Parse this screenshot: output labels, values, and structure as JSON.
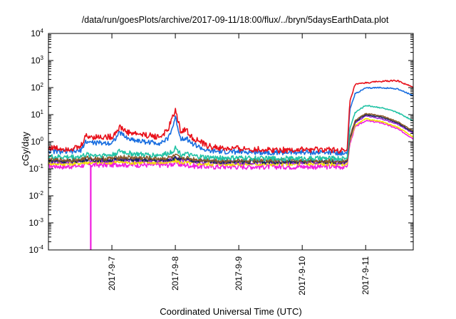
{
  "chart_data": {
    "type": "line",
    "title": "/data/run/goesPlots/archive/2017-09-11/18:00/flux/../bryn/5daysEarthData.plot",
    "xlabel": "Coordinated Universal Time (UTC)",
    "ylabel": "cGy/day",
    "y_scale": "log",
    "ylim": [
      0.0001,
      10000
    ],
    "xlim": [
      "2017-09-06 00:00",
      "2017-09-11 18:00"
    ],
    "y_ticks": [
      {
        "base": "10",
        "exp": "-4",
        "value": 0.0001
      },
      {
        "base": "10",
        "exp": "-3",
        "value": 0.001
      },
      {
        "base": "10",
        "exp": "-2",
        "value": 0.01
      },
      {
        "base": "10",
        "exp": "-1",
        "value": 0.1
      },
      {
        "base": "10",
        "exp": "0",
        "value": 1
      },
      {
        "base": "10",
        "exp": "1",
        "value": 10
      },
      {
        "base": "10",
        "exp": "2",
        "value": 100
      },
      {
        "base": "10",
        "exp": "3",
        "value": 1000
      },
      {
        "base": "10",
        "exp": "4",
        "value": 10000
      }
    ],
    "x_ticks": [
      {
        "label": "2017-9-7",
        "x": "2017-09-07 00:00"
      },
      {
        "label": "2017-9-8",
        "x": "2017-09-08 00:00"
      },
      {
        "label": "2017-9-9",
        "x": "2017-09-09 00:00"
      },
      {
        "label": "2017-9-10",
        "x": "2017-09-10 00:00"
      },
      {
        "label": "2017-9-11",
        "x": "2017-09-11 00:00"
      }
    ],
    "grid": false,
    "legend": "none",
    "x": [
      "2017-09-06 00:00",
      "2017-09-06 06:00",
      "2017-09-06 12:00",
      "2017-09-06 14:00",
      "2017-09-06 18:00",
      "2017-09-07 00:00",
      "2017-09-07 03:00",
      "2017-09-07 06:00",
      "2017-09-07 12:00",
      "2017-09-07 18:00",
      "2017-09-07 21:00",
      "2017-09-07 23:00",
      "2017-09-08 00:00",
      "2017-09-08 02:00",
      "2017-09-08 04:00",
      "2017-09-08 06:00",
      "2017-09-08 12:00",
      "2017-09-08 18:00",
      "2017-09-09 00:00",
      "2017-09-09 12:00",
      "2017-09-10 00:00",
      "2017-09-10 12:00",
      "2017-09-10 16:00",
      "2017-09-10 17:00",
      "2017-09-10 18:00",
      "2017-09-10 20:00",
      "2017-09-11 00:00",
      "2017-09-11 06:00",
      "2017-09-11 12:00",
      "2017-09-11 18:00"
    ],
    "series": [
      {
        "color": "#e8111b",
        "values": [
          0.6,
          0.55,
          0.6,
          1.6,
          1.5,
          1.5,
          3.5,
          2.2,
          1.8,
          1.5,
          2.5,
          8.0,
          15.0,
          2.5,
          2.8,
          1.5,
          0.7,
          0.55,
          0.55,
          0.5,
          0.5,
          0.5,
          0.45,
          0.45,
          30,
          130,
          150,
          170,
          180,
          100
        ]
      },
      {
        "color": "#1a6fe0",
        "values": [
          0.45,
          0.42,
          0.45,
          1.0,
          0.9,
          0.9,
          2.2,
          1.3,
          1.0,
          0.9,
          1.2,
          3.5,
          8.0,
          1.3,
          1.4,
          0.9,
          0.45,
          0.42,
          0.42,
          0.4,
          0.4,
          0.4,
          0.38,
          0.38,
          15,
          60,
          95,
          100,
          90,
          50
        ]
      },
      {
        "color": "#22c3a5",
        "values": [
          0.28,
          0.27,
          0.28,
          0.33,
          0.32,
          0.32,
          0.45,
          0.38,
          0.33,
          0.32,
          0.36,
          0.45,
          0.6,
          0.35,
          0.36,
          0.3,
          0.26,
          0.25,
          0.25,
          0.24,
          0.24,
          0.24,
          0.24,
          0.24,
          3,
          12,
          22,
          18,
          12,
          6
        ]
      },
      {
        "color": "#8a5a2b",
        "values": [
          0.22,
          0.21,
          0.22,
          0.25,
          0.24,
          0.24,
          0.27,
          0.26,
          0.25,
          0.24,
          0.25,
          0.27,
          0.3,
          0.25,
          0.25,
          0.23,
          0.21,
          0.2,
          0.2,
          0.2,
          0.2,
          0.2,
          0.2,
          0.2,
          1.5,
          6,
          11,
          9,
          5.5,
          2.5
        ]
      },
      {
        "color": "#1b2a5c",
        "values": [
          0.2,
          0.19,
          0.2,
          0.22,
          0.21,
          0.21,
          0.23,
          0.22,
          0.21,
          0.21,
          0.22,
          0.23,
          0.25,
          0.22,
          0.22,
          0.2,
          0.19,
          0.18,
          0.18,
          0.18,
          0.18,
          0.18,
          0.18,
          0.18,
          1.3,
          5.5,
          10,
          8,
          5,
          2.2
        ]
      },
      {
        "color": "#9b2bd6",
        "values": [
          0.19,
          0.18,
          0.19,
          0.21,
          0.2,
          0.2,
          0.22,
          0.21,
          0.2,
          0.2,
          0.21,
          0.22,
          0.24,
          0.21,
          0.21,
          0.19,
          0.18,
          0.17,
          0.17,
          0.17,
          0.17,
          0.17,
          0.17,
          0.17,
          1.2,
          5,
          9,
          7,
          4.5,
          2
        ]
      },
      {
        "color": "#f2e200",
        "values": [
          0.16,
          0.15,
          0.16,
          0.17,
          0.17,
          0.17,
          0.18,
          0.17,
          0.17,
          0.17,
          0.17,
          0.18,
          0.2,
          0.17,
          0.17,
          0.16,
          0.15,
          0.15,
          0.15,
          0.15,
          0.15,
          0.15,
          0.15,
          0.15,
          1.0,
          4,
          7,
          5.5,
          3.5,
          1.5
        ]
      },
      {
        "color": "#f01fe0",
        "values": [
          0.13,
          0.12,
          0.13,
          0.14,
          0.14,
          0.14,
          0.15,
          0.14,
          0.14,
          0.14,
          0.14,
          0.15,
          0.17,
          0.14,
          0.14,
          0.13,
          0.12,
          0.12,
          0.12,
          0.12,
          0.12,
          0.12,
          0.12,
          0.12,
          0.8,
          3.5,
          6,
          5,
          3,
          1.3
        ]
      }
    ],
    "annotations": [
      {
        "type": "dropout",
        "color": "#f01fe0",
        "x": "2017-09-06 16:00",
        "y_from": 0.13,
        "y_to": 0.0001
      }
    ]
  }
}
